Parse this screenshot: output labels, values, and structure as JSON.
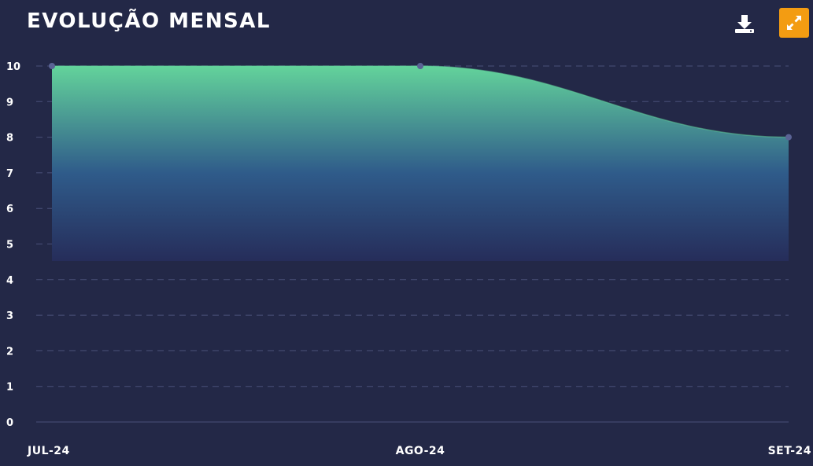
{
  "header": {
    "title": "EVOLUÇÃO  MENSAL",
    "download_icon": "download-icon",
    "expand_icon": "expand-icon"
  },
  "colors": {
    "background": "#232847",
    "accent": "#f39c12",
    "area_top": "#63d39b",
    "area_bottom": "#262d5a",
    "marker": "#5a6395",
    "grid": "#4a5078"
  },
  "chart_data": {
    "type": "area",
    "categories": [
      "JUL-24",
      "AGO-24",
      "SET-24"
    ],
    "series": [
      {
        "values": [
          10,
          10,
          8
        ]
      }
    ],
    "yticks": [
      0,
      1,
      2,
      3,
      4,
      5,
      6,
      7,
      8,
      9,
      10
    ],
    "ylim": [
      0,
      10
    ],
    "grid": true,
    "grid_style": "dashed",
    "title": "EVOLUÇÃO  MENSAL",
    "xlabel": "",
    "ylabel": ""
  }
}
